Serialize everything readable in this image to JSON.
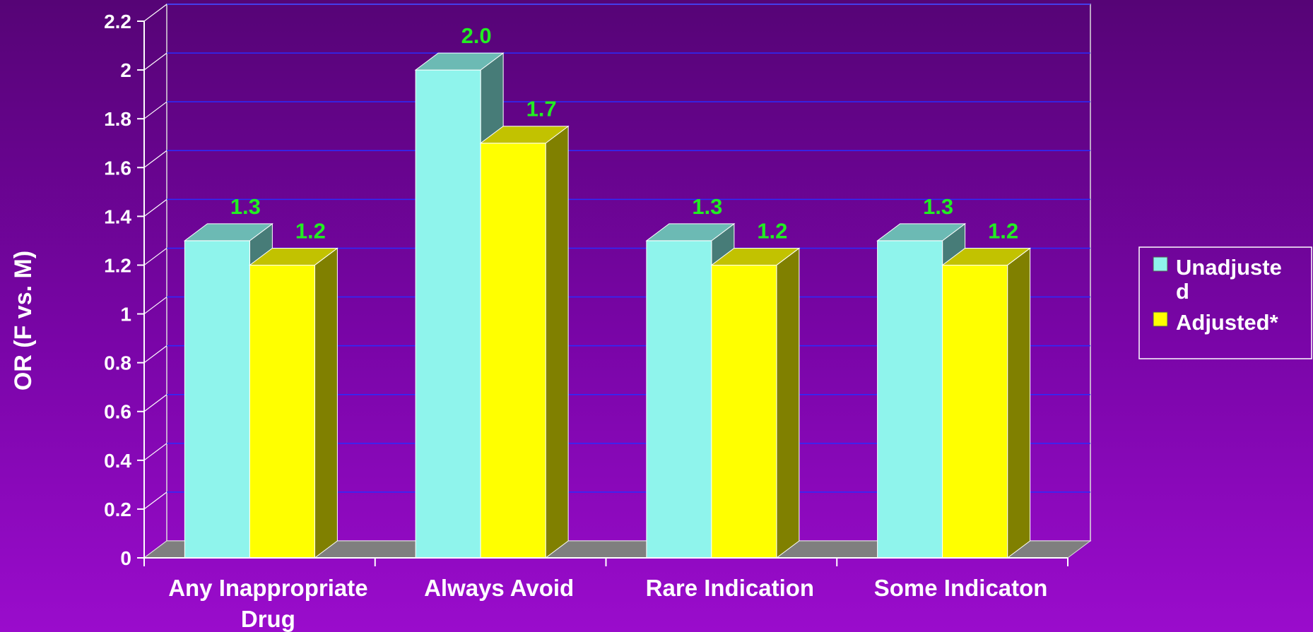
{
  "chart_data": {
    "type": "bar",
    "title": "",
    "ylabel": "OR (F vs. M)",
    "xlabel": "",
    "ylim": [
      0,
      2.2
    ],
    "yticks": [
      "0",
      "0.2",
      "0.4",
      "0.6",
      "0.8",
      "1",
      "1.2",
      "1.4",
      "1.6",
      "1.8",
      "2",
      "2.2"
    ],
    "categories": [
      [
        "Any Inappropriate",
        "Drug"
      ],
      [
        "Always Avoid"
      ],
      [
        "Rare Indication"
      ],
      [
        "Some Indicaton"
      ]
    ],
    "series": [
      {
        "name": [
          "Unadjuste",
          "d"
        ],
        "values": [
          1.3,
          2.0,
          1.3,
          1.3
        ],
        "labels": [
          "1.3",
          "2.0",
          "1.3",
          "1.3"
        ],
        "color_front": "#8ff4ec",
        "color_top": "#6cbab4",
        "color_side": "#477c78"
      },
      {
        "name": [
          "Adjusted*"
        ],
        "values": [
          1.2,
          1.7,
          1.2,
          1.2
        ],
        "labels": [
          "1.2",
          "1.7",
          "1.2",
          "1.2"
        ],
        "color_front": "#ffff00",
        "color_top": "#c2c200",
        "color_side": "#808000"
      }
    ],
    "gridlines": true,
    "grid_color": "#2a2cff",
    "floor_color": "#7f7f7f",
    "label_color": "#22ee22",
    "legend_position": "right"
  }
}
